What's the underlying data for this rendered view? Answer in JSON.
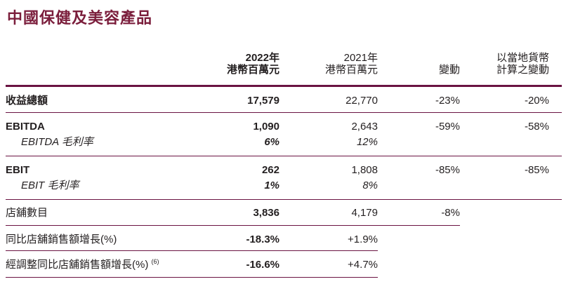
{
  "page_title": "中國保健及美容產品",
  "colors": {
    "accent_rule": "#6a1342",
    "title_text": "#7b1e3c",
    "body_text": "#231f20"
  },
  "table": {
    "columns": {
      "y2022_line1": "2022年",
      "y2022_line2": "港幣百萬元",
      "y2021_line1": "2021年",
      "y2021_line2": "港幣百萬元",
      "change": "變動",
      "local_line1": "以當地貨幣",
      "local_line2": "計算之變動"
    },
    "rows": [
      {
        "label": "收益總額",
        "y2022": "17,579",
        "y2021": "22,770",
        "change": "-23%",
        "local_change": "-20%"
      },
      {
        "label": "EBITDA",
        "y2022": "1,090",
        "y2021": "2,643",
        "change": "-59%",
        "local_change": "-58%"
      },
      {
        "label": "EBITDA 毛利率",
        "y2022": "6%",
        "y2021": "12%",
        "change": "",
        "local_change": ""
      },
      {
        "label": "EBIT",
        "y2022": "262",
        "y2021": "1,808",
        "change": "-85%",
        "local_change": "-85%"
      },
      {
        "label": "EBIT 毛利率",
        "y2022": "1%",
        "y2021": "8%",
        "change": "",
        "local_change": ""
      },
      {
        "label": "店舖數目",
        "y2022": "3,836",
        "y2021": "4,179",
        "change": "-8%",
        "local_change": ""
      },
      {
        "label": "同比店舖銷售額增長(%)",
        "y2022": "-18.3%",
        "y2021": "+1.9%",
        "change": "",
        "local_change": ""
      },
      {
        "label": "經調整同比店舖銷售額增長(%)",
        "label_footnote": "(6)",
        "y2022": "-16.6%",
        "y2021": "+4.7%",
        "change": "",
        "local_change": ""
      }
    ]
  }
}
